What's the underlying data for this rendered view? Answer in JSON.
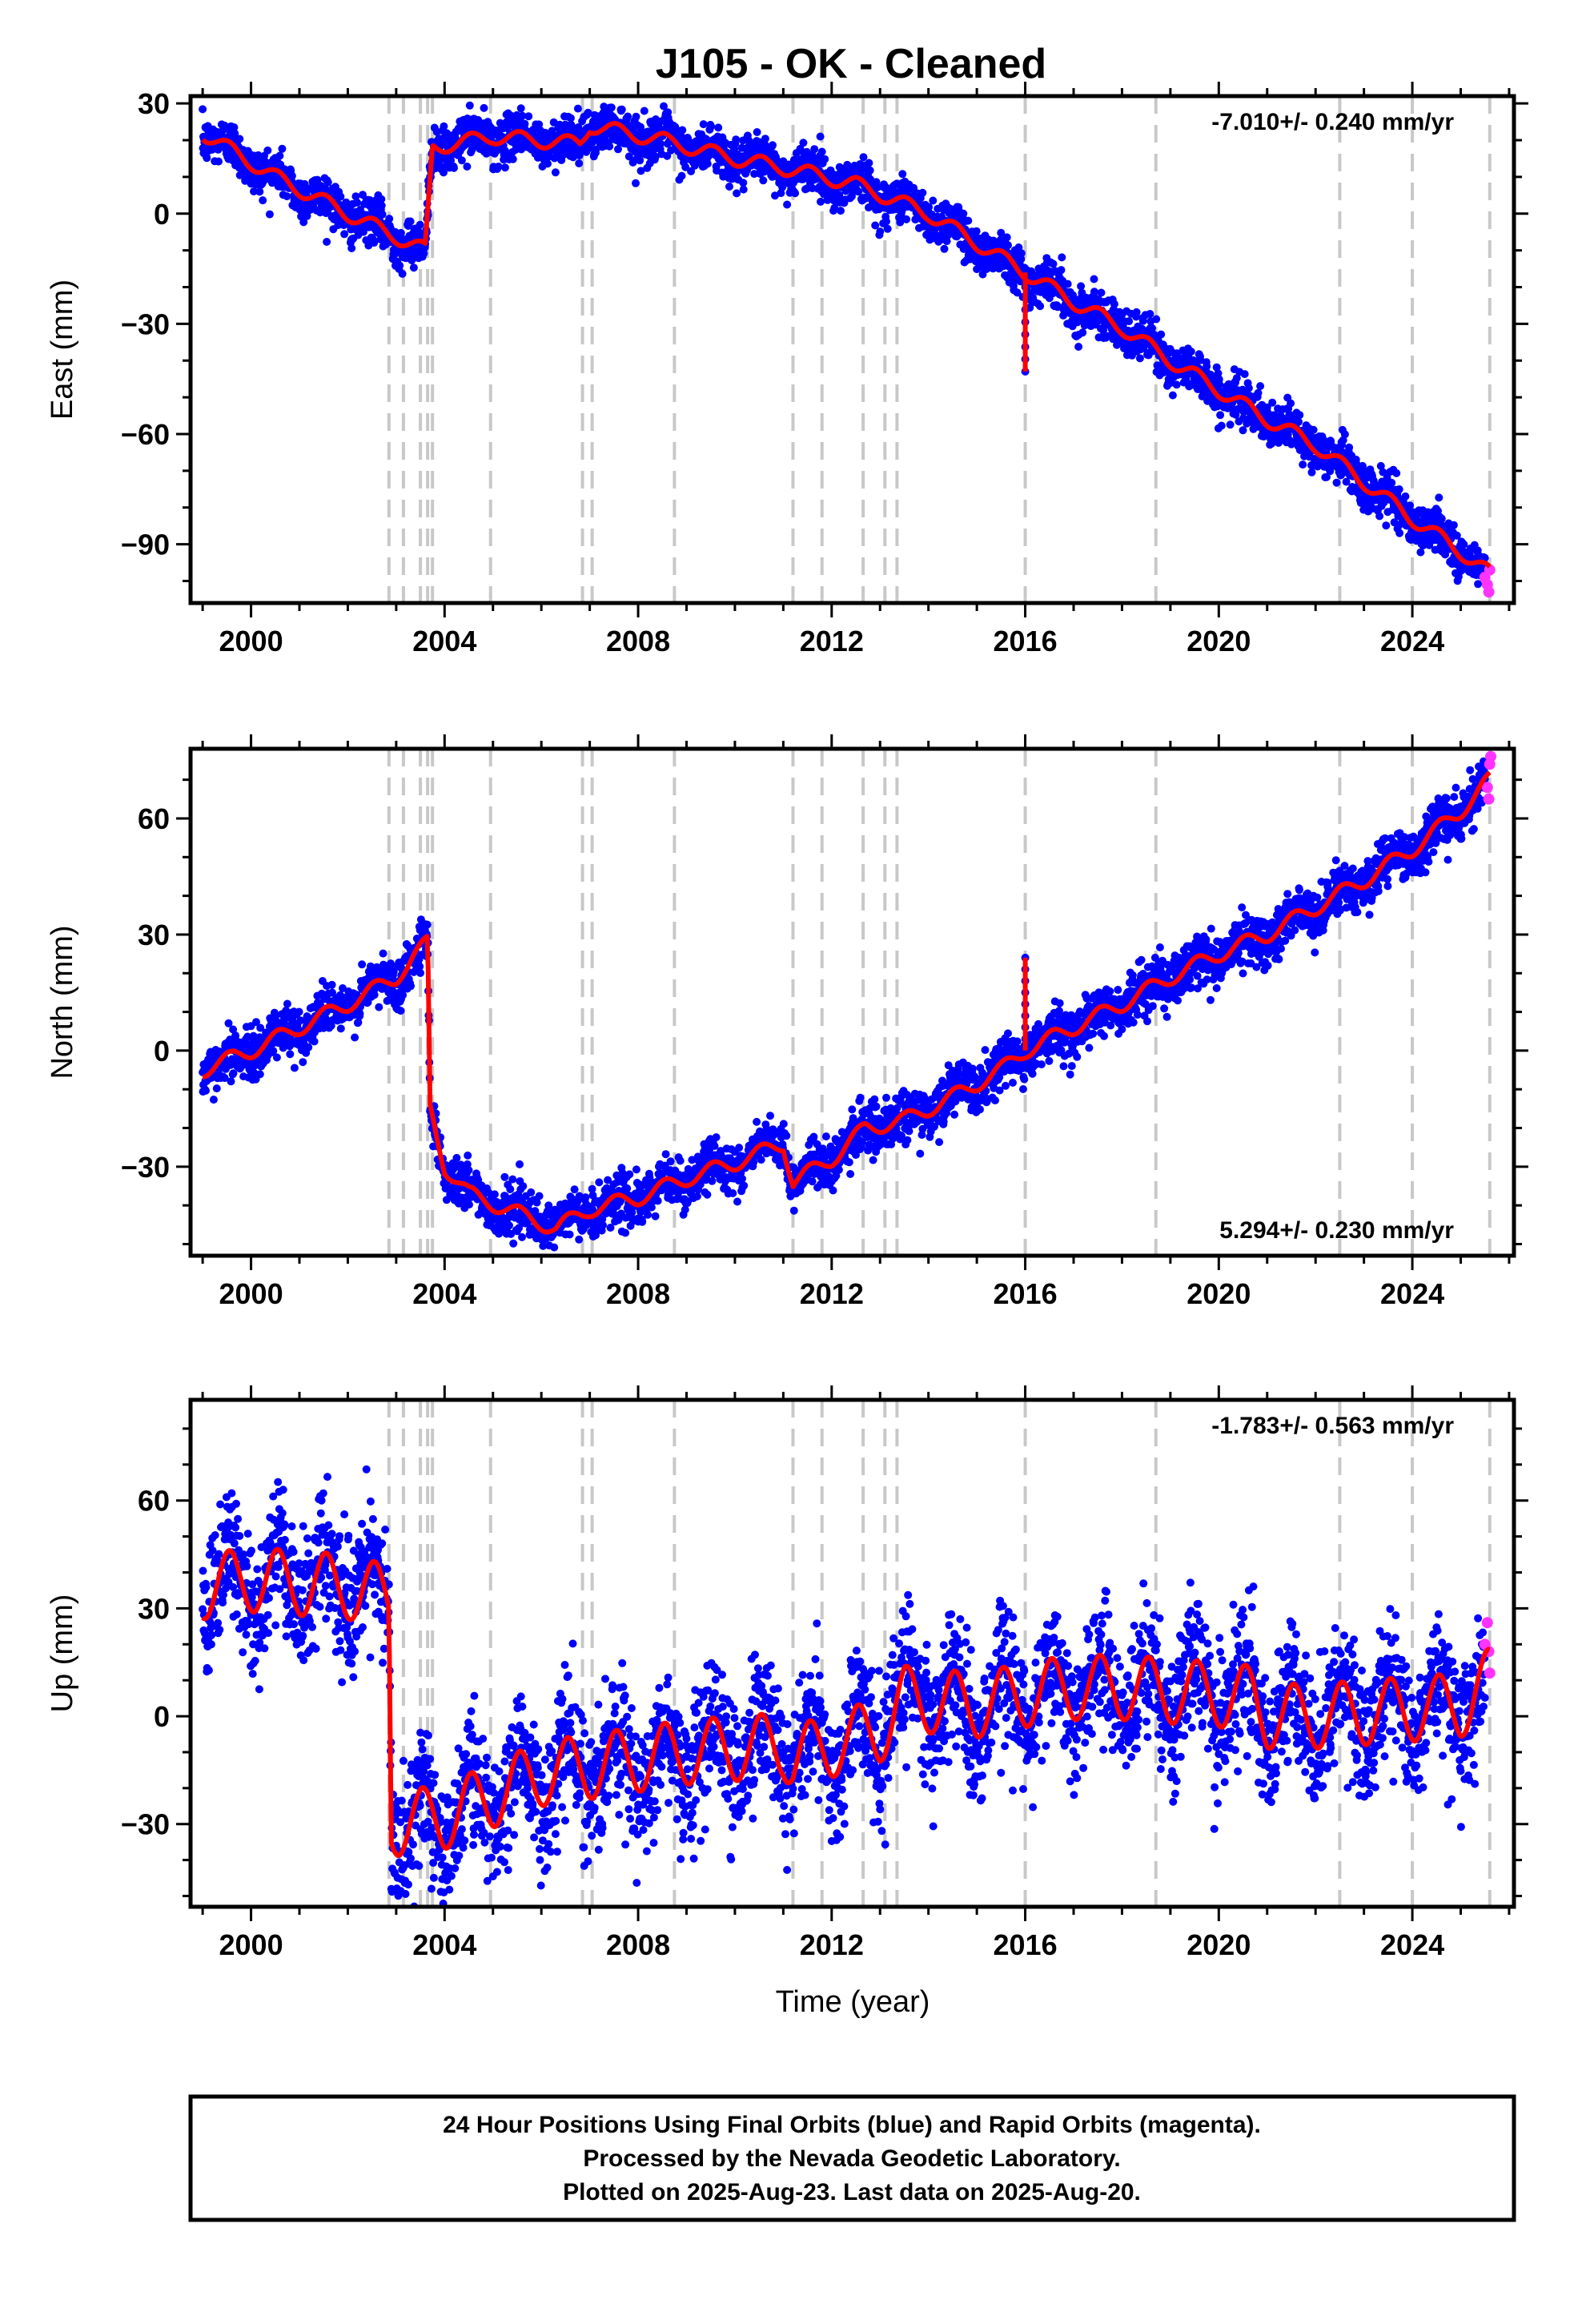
{
  "title": "J105  - OK - Cleaned",
  "xlabel": "Time (year)",
  "footer": {
    "line1": "24 Hour Positions Using Final Orbits (blue) and Rapid Orbits (magenta).",
    "line2": "Processed by the Nevada Geodetic Laboratory.",
    "line3": "Plotted on 2025-Aug-23. Last data on 2025-Aug-20."
  },
  "colors": {
    "final_orbits": "#0000ff",
    "rapid_orbits": "#ff33ff",
    "model_fit": "#ff0000",
    "event_lines": "#c8c8c8",
    "frame": "#000000"
  },
  "chart_data": [
    {
      "type": "scatter",
      "component": "East",
      "ylabel": "East (mm)",
      "xlim": [
        1998.75,
        2026.1
      ],
      "ylim": [
        -106,
        32
      ],
      "xticks": [
        2000,
        2004,
        2008,
        2012,
        2016,
        2020,
        2024
      ],
      "xtick_labels": [
        "2000",
        "2004",
        "2008",
        "2012",
        "2016",
        "2020",
        "2024"
      ],
      "yticks": [
        30,
        0,
        -30,
        -60,
        -90
      ],
      "ytick_labels": [
        "30",
        "0",
        "−30",
        "−60",
        "−90"
      ],
      "rate_label": "-7.010+/- 0.240 mm/yr",
      "rate_position": "top-right",
      "grid": false,
      "scatter_noise_mm": 3,
      "trend": [
        [
          1999.0,
          22
        ],
        [
          2000.5,
          10
        ],
        [
          2002.0,
          0
        ],
        [
          2003.6,
          -10
        ],
        [
          2003.75,
          18
        ],
        [
          2005.0,
          21
        ],
        [
          2006.8,
          19
        ],
        [
          2007.0,
          24
        ],
        [
          2008.5,
          20
        ],
        [
          2010.0,
          15
        ],
        [
          2011.2,
          12
        ],
        [
          2012.5,
          8
        ],
        [
          2014.0,
          0
        ],
        [
          2015.0,
          -8
        ],
        [
          2016.0,
          -16
        ],
        [
          2017.0,
          -24
        ],
        [
          2018.0,
          -31
        ],
        [
          2019.0,
          -40
        ],
        [
          2020.0,
          -48
        ],
        [
          2021.0,
          -56
        ],
        [
          2022.0,
          -63
        ],
        [
          2023.0,
          -73
        ],
        [
          2024.0,
          -83
        ],
        [
          2025.0,
          -92
        ],
        [
          2025.6,
          -98
        ]
      ],
      "seasonal_amplitude_mm": 2,
      "spikes": [
        {
          "x": 2016.0,
          "y": -43
        }
      ],
      "rapid_points": [
        [
          2025.5,
          -99
        ],
        [
          2025.55,
          -101
        ],
        [
          2025.58,
          -103
        ],
        [
          2025.6,
          -97
        ]
      ]
    },
    {
      "type": "scatter",
      "component": "North",
      "ylabel": "North (mm)",
      "xlim": [
        1998.75,
        2026.1
      ],
      "ylim": [
        -53,
        78
      ],
      "xticks": [
        2000,
        2004,
        2008,
        2012,
        2016,
        2020,
        2024
      ],
      "xtick_labels": [
        "2000",
        "2004",
        "2008",
        "2012",
        "2016",
        "2020",
        "2024"
      ],
      "yticks": [
        60,
        30,
        0,
        -30
      ],
      "ytick_labels": [
        "60",
        "30",
        "0",
        "−30"
      ],
      "rate_label": "5.294+/- 0.230 mm/yr",
      "rate_position": "bottom-right",
      "grid": false,
      "scatter_noise_mm": 3,
      "trend": [
        [
          1999.0,
          -5
        ],
        [
          2000.0,
          0
        ],
        [
          2001.0,
          6
        ],
        [
          2002.0,
          12
        ],
        [
          2003.0,
          19
        ],
        [
          2003.65,
          28
        ],
        [
          2003.7,
          -15
        ],
        [
          2004.0,
          -30
        ],
        [
          2004.5,
          -37
        ],
        [
          2005.5,
          -42
        ],
        [
          2006.3,
          -46
        ],
        [
          2007.0,
          -41
        ],
        [
          2008.0,
          -38
        ],
        [
          2009.0,
          -33
        ],
        [
          2010.0,
          -29
        ],
        [
          2011.0,
          -24
        ],
        [
          2011.2,
          -34
        ],
        [
          2012.0,
          -28
        ],
        [
          2012.7,
          -20
        ],
        [
          2013.5,
          -18
        ],
        [
          2014.5,
          -12
        ],
        [
          2015.5,
          -5
        ],
        [
          2016.0,
          0
        ],
        [
          2017.0,
          6
        ],
        [
          2018.0,
          12
        ],
        [
          2019.0,
          19
        ],
        [
          2020.0,
          25
        ],
        [
          2021.0,
          30
        ],
        [
          2022.0,
          37
        ],
        [
          2023.0,
          44
        ],
        [
          2024.0,
          52
        ],
        [
          2025.0,
          62
        ],
        [
          2025.6,
          70
        ]
      ],
      "seasonal_amplitude_mm": 2,
      "spikes": [
        {
          "x": 2016.0,
          "y": 24
        }
      ],
      "rapid_points": [
        [
          2025.55,
          68
        ],
        [
          2025.6,
          74
        ],
        [
          2025.62,
          76
        ],
        [
          2025.58,
          65
        ]
      ]
    },
    {
      "type": "scatter",
      "component": "Up",
      "ylabel": "Up (mm)",
      "xlim": [
        1998.75,
        2026.1
      ],
      "ylim": [
        -53,
        88
      ],
      "xticks": [
        2000,
        2004,
        2008,
        2012,
        2016,
        2020,
        2024
      ],
      "xtick_labels": [
        "2000",
        "2004",
        "2008",
        "2012",
        "2016",
        "2020",
        "2024"
      ],
      "yticks": [
        60,
        30,
        0,
        -30
      ],
      "ytick_labels": [
        "60",
        "30",
        "0",
        "−30"
      ],
      "rate_label": "-1.783+/- 0.563 mm/yr",
      "rate_position": "top-right",
      "grid": false,
      "scatter_noise_mm": 9,
      "trend": [
        [
          1999.0,
          36
        ],
        [
          2000.0,
          38
        ],
        [
          2001.0,
          37
        ],
        [
          2002.0,
          36
        ],
        [
          2002.85,
          33
        ],
        [
          2002.9,
          -30
        ],
        [
          2004.0,
          -28
        ],
        [
          2005.0,
          -22
        ],
        [
          2006.0,
          -16
        ],
        [
          2007.0,
          -14
        ],
        [
          2008.0,
          -12
        ],
        [
          2009.0,
          -10
        ],
        [
          2010.0,
          -9
        ],
        [
          2011.0,
          -8
        ],
        [
          2011.2,
          -12
        ],
        [
          2012.0,
          -8
        ],
        [
          2013.0,
          -4
        ],
        [
          2013.5,
          5
        ],
        [
          2015.0,
          3
        ],
        [
          2016.0,
          6
        ],
        [
          2017.0,
          8
        ],
        [
          2018.0,
          8
        ],
        [
          2019.0,
          7
        ],
        [
          2020.0,
          6
        ],
        [
          2020.7,
          5
        ],
        [
          2021.0,
          0
        ],
        [
          2022.0,
          0
        ],
        [
          2023.0,
          1
        ],
        [
          2024.0,
          2
        ],
        [
          2025.0,
          3
        ],
        [
          2025.6,
          10
        ]
      ],
      "seasonal_amplitude_mm": 9,
      "spikes": [],
      "rapid_points": [
        [
          2025.5,
          20
        ],
        [
          2025.55,
          26
        ],
        [
          2025.6,
          12
        ],
        [
          2025.58,
          18
        ]
      ]
    }
  ],
  "event_lines_years": [
    2002.85,
    2003.15,
    2003.5,
    2003.65,
    2003.75,
    2004.95,
    2006.85,
    2007.05,
    2008.75,
    2011.2,
    2011.8,
    2012.65,
    2013.1,
    2013.35,
    2016.0,
    2018.7,
    2022.5,
    2024.0,
    2025.6
  ]
}
